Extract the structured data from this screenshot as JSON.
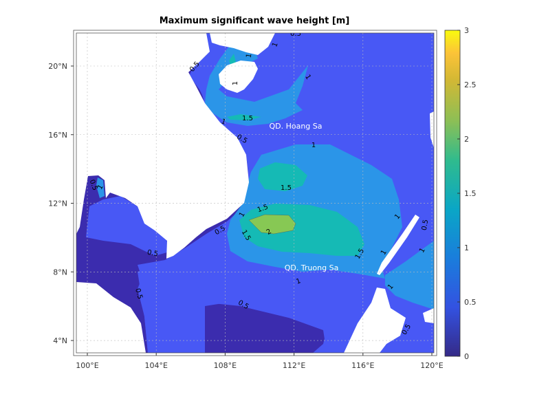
{
  "title": "Maximum significant wave height [m]",
  "annotations": [
    "QD. Hoang Sa",
    "QD. Truong Sa"
  ],
  "colors": {
    "land": "#ffffff",
    "band_0_0.5": "#3b2cae",
    "band_0.5_1": "#4858f5",
    "band_1_1.5": "#2b95e8",
    "band_1.5_2": "#15bab5",
    "band_2_2.5": "#87c854"
  },
  "chart_data": {
    "type": "heatmap",
    "subtype": "filled contour map",
    "title": "Maximum significant wave height [m]",
    "contour_levels": [
      0.5,
      1,
      1.5,
      2
    ],
    "max_band": "2-2.5 m",
    "lon_range": [
      "99.4°E",
      "120.1°E"
    ],
    "lat_range": [
      "3.3°N",
      "21.9°N"
    ],
    "x_ticks": [
      "100°E",
      "104°E",
      "108°E",
      "112°E",
      "116°E",
      "120°E"
    ],
    "y_ticks": [
      "4°N",
      "8°N",
      "12°N",
      "16°N",
      "20°N"
    ],
    "grid": true,
    "colorbar": {
      "colormap": "parula",
      "clim": [
        0,
        3
      ],
      "ticks": [
        "0",
        "0.5",
        "1",
        "1.5",
        "2",
        "2.5",
        "3"
      ],
      "placement": "right"
    },
    "contour_labels": [
      "0.5",
      "1",
      "1",
      "0.5",
      "1",
      "1",
      "1.5",
      "1",
      "0.5",
      "1",
      "1.5",
      "0.5",
      "1",
      "1.5",
      "1",
      "2",
      "1.5",
      "0.5",
      "1.5",
      "0.5",
      "1",
      "0.5",
      "1",
      "1",
      "1",
      "1",
      "0.5",
      "0.5",
      "0.5"
    ]
  }
}
